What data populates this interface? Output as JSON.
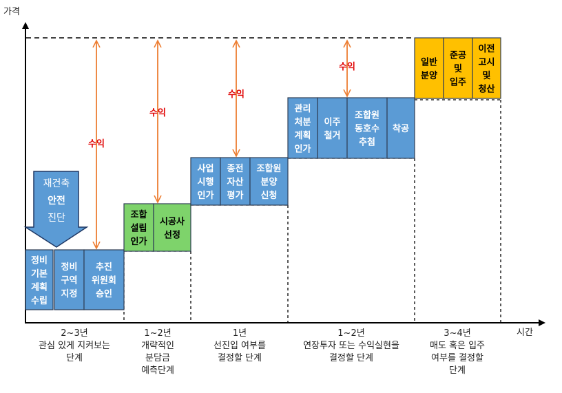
{
  "axes": {
    "y_label": "가격",
    "x_label": "시간"
  },
  "callout": {
    "lines": [
      "재건축",
      "안전",
      "진단"
    ],
    "color": "#5B9BD5"
  },
  "colors": {
    "blue": "#5B9BD5",
    "green": "#7ED36B",
    "orange": "#FFC000",
    "arrow": "#ED7D31",
    "profit_text": "#E00000"
  },
  "steps": [
    {
      "lines": [
        "정비",
        "기본",
        "계획",
        "수립"
      ],
      "color": "blue"
    },
    {
      "lines": [
        "정비",
        "구역",
        "지정"
      ],
      "color": "blue"
    },
    {
      "lines": [
        "추진",
        "위원회",
        "승인"
      ],
      "color": "blue"
    },
    {
      "lines": [
        "조합",
        "설립",
        "인가"
      ],
      "color": "green"
    },
    {
      "lines": [
        "시공사",
        "선정"
      ],
      "color": "green"
    },
    {
      "lines": [
        "사업",
        "시행",
        "인가"
      ],
      "color": "blue"
    },
    {
      "lines": [
        "종전",
        "자산",
        "평가"
      ],
      "color": "blue"
    },
    {
      "lines": [
        "조합원",
        "분양",
        "신청"
      ],
      "color": "blue"
    },
    {
      "lines": [
        "관리",
        "처분",
        "계획",
        "인가"
      ],
      "color": "blue"
    },
    {
      "lines": [
        "이주",
        "철거"
      ],
      "color": "blue"
    },
    {
      "lines": [
        "조합원",
        "동호수",
        "추첨"
      ],
      "color": "blue"
    },
    {
      "lines": [
        "착공"
      ],
      "color": "blue"
    },
    {
      "lines": [
        "일반",
        "분양"
      ],
      "color": "orange"
    },
    {
      "lines": [
        "준공",
        "및",
        "입주"
      ],
      "color": "orange"
    },
    {
      "lines": [
        "이전",
        "고시",
        "및",
        "청산"
      ],
      "color": "orange"
    }
  ],
  "profit_labels": [
    "수익",
    "수익",
    "수익",
    "수익"
  ],
  "phases": [
    {
      "duration": "2~3년",
      "description": "관심 있게 지켜보는\n단계"
    },
    {
      "duration": "1~2년",
      "description": "개략적인\n분담금\n예측단계"
    },
    {
      "duration": "1년",
      "description": "선진입 여부를\n결정할 단계"
    },
    {
      "duration": "1~2년",
      "description": "연장투자 또는 수익실현을\n결정할 단계"
    },
    {
      "duration": "3~4년",
      "description": "매도 혹은 입주\n여부를 결정할\n단계"
    }
  ]
}
